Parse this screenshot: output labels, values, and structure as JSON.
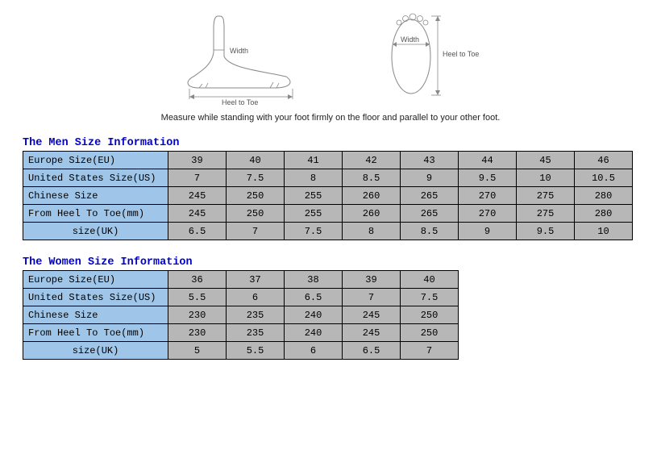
{
  "diagram": {
    "width_label": "Width",
    "heel_to_toe_label": "Heel to Toe"
  },
  "instruction_text": "Measure while standing with your foot firmly on the floor and parallel to your other foot.",
  "colors": {
    "title": "#0000cc",
    "row_header_bg": "#9fc5e8",
    "data_bg": "#b7b7b7",
    "border": "#000000"
  },
  "men": {
    "title": "The Men Size Information",
    "rows": [
      {
        "label": "Europe Size(EU)",
        "cells": [
          "39",
          "40",
          "41",
          "42",
          "43",
          "44",
          "45",
          "46"
        ]
      },
      {
        "label": "United States Size(US)",
        "cells": [
          "7",
          "7.5",
          "8",
          "8.5",
          "9",
          "9.5",
          "10",
          "10.5"
        ]
      },
      {
        "label": "Chinese Size",
        "cells": [
          "245",
          "250",
          "255",
          "260",
          "265",
          "270",
          "275",
          "280"
        ]
      },
      {
        "label": "From Heel To Toe(mm)",
        "cells": [
          "245",
          "250",
          "255",
          "260",
          "265",
          "270",
          "275",
          "280"
        ]
      },
      {
        "label": "size(UK)",
        "center": true,
        "cells": [
          "6.5",
          "7",
          "7.5",
          "8",
          "8.5",
          "9",
          "9.5",
          "10"
        ]
      }
    ]
  },
  "women": {
    "title": "The Women Size Information",
    "rows": [
      {
        "label": "Europe Size(EU)",
        "cells": [
          "36",
          "37",
          "38",
          "39",
          "40"
        ]
      },
      {
        "label": "United States Size(US)",
        "cells": [
          "5.5",
          "6",
          "6.5",
          "7",
          "7.5"
        ]
      },
      {
        "label": "Chinese Size",
        "cells": [
          "230",
          "235",
          "240",
          "245",
          "250"
        ]
      },
      {
        "label": "From Heel To Toe(mm)",
        "cells": [
          "230",
          "235",
          "240",
          "245",
          "250"
        ]
      },
      {
        "label": "size(UK)",
        "center": true,
        "cells": [
          "5",
          "5.5",
          "6",
          "6.5",
          "7"
        ]
      }
    ]
  }
}
